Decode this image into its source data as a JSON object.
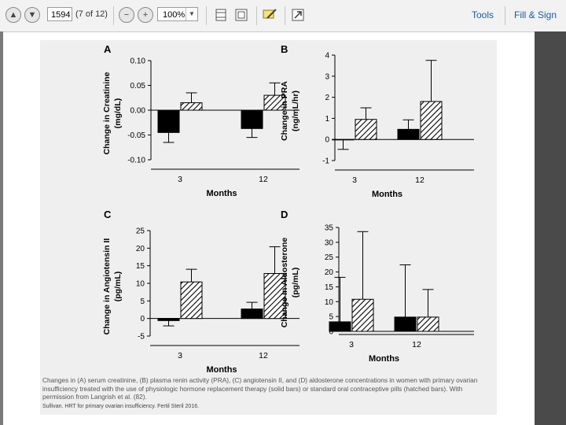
{
  "toolbar": {
    "page_number": "1594",
    "page_count": "(7 of 12)",
    "zoom_level": "100%",
    "tools_label": "Tools",
    "fill_sign_label": "Fill & Sign"
  },
  "panels": [
    {
      "letter": "A",
      "ylabel": "Change in Creatinine (mg/dL)",
      "ticks": [
        "0.10",
        "0.05",
        "0.00",
        "-0.05",
        "-0.10"
      ],
      "xlabel": "Months",
      "categories": [
        "3",
        "12"
      ]
    },
    {
      "letter": "B",
      "ylabel": "Change in PRA (ng/mL/hr)",
      "ticks": [
        "4",
        "3",
        "2",
        "1",
        "0",
        "-1"
      ],
      "xlabel": "Months",
      "categories": [
        "3",
        "12"
      ]
    },
    {
      "letter": "C",
      "ylabel": "Change in Angiotensin II (pg/mL)",
      "ticks": [
        "25",
        "20",
        "15",
        "10",
        "5",
        "0",
        "-5"
      ],
      "xlabel": "Months",
      "categories": [
        "3",
        "12"
      ]
    },
    {
      "letter": "D",
      "ylabel": "Change in Aldosterone (pg/mL)",
      "ticks": [
        "35",
        "30",
        "25",
        "20",
        "15",
        "10",
        "5",
        "0"
      ],
      "xlabel": "Months",
      "categories": [
        "3",
        "12"
      ]
    }
  ],
  "chart_data": [
    {
      "type": "bar",
      "panel": "A",
      "categories": [
        "3",
        "12"
      ],
      "xlabel": "Months",
      "ylabel": "Change in Creatinine (mg/dL)",
      "ylim": [
        -0.1,
        0.1
      ],
      "series": [
        {
          "style": "solid",
          "values": [
            -0.045,
            -0.037
          ],
          "errors": [
            0.02,
            0.018
          ]
        },
        {
          "style": "hatched",
          "values": [
            0.015,
            0.03
          ],
          "errors": [
            0.02,
            0.025
          ]
        }
      ]
    },
    {
      "type": "bar",
      "panel": "B",
      "categories": [
        "3",
        "12"
      ],
      "xlabel": "Months",
      "ylabel": "Change in PRA (ng/mL/hr)",
      "ylim": [
        -1,
        4
      ],
      "series": [
        {
          "style": "solid",
          "values": [
            -0.02,
            0.48
          ],
          "errors": [
            0.45,
            0.45
          ]
        },
        {
          "style": "hatched",
          "values": [
            0.95,
            1.8
          ],
          "errors": [
            0.55,
            1.95
          ]
        }
      ]
    },
    {
      "type": "bar",
      "panel": "C",
      "categories": [
        "3",
        "12"
      ],
      "xlabel": "Months",
      "ylabel": "Change in Angiotensin II (pg/mL)",
      "ylim": [
        -5,
        25
      ],
      "series": [
        {
          "style": "solid",
          "values": [
            -0.6,
            2.7
          ],
          "errors": [
            1.5,
            1.9
          ]
        },
        {
          "style": "hatched",
          "values": [
            10.4,
            12.8
          ],
          "errors": [
            3.6,
            7.6
          ]
        }
      ]
    },
    {
      "type": "bar",
      "panel": "D",
      "categories": [
        "3",
        "12"
      ],
      "xlabel": "Months",
      "ylabel": "Change in Aldosterone (pg/mL)",
      "ylim": [
        0,
        35
      ],
      "series": [
        {
          "style": "solid",
          "values": [
            3.2,
            4.8
          ],
          "errors": [
            15,
            17.6
          ]
        },
        {
          "style": "hatched",
          "values": [
            10.8,
            4.8
          ],
          "errors": [
            22.8,
            9.3
          ]
        }
      ]
    }
  ],
  "caption": {
    "text": "Changes in (A) serum creatinine, (B) plasma renin activity (PRA), (C) angiotensin II, and (D) aldosterone concentrations in women with primary ovarian insufficiency treated with the use of physiologic hormone replacement therapy (solid bars) or standard oral contraceptive pills (hatched bars). With permission from Langrish et al. (82).",
    "source": "Sullivan. HRT for primary ovarian insufficiency. Fertil Steril 2016."
  },
  "colors": {
    "solid": "#000000",
    "hatch": "#000000",
    "figure_bg": "#efefef",
    "link": "#1f5c99"
  }
}
